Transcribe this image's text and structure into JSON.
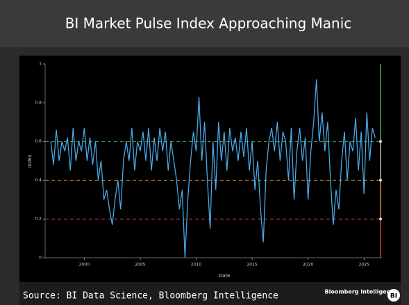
{
  "chart_data": {
    "type": "line",
    "title": "BI Market Pulse Index Approaching Manic",
    "x_label": "Date",
    "y_label": "Index",
    "source": "Source: BI Data Science, Bloomberg Intelligence",
    "logo_text": "Bloomberg Intelligence",
    "logo_badge": "BI",
    "x": [
      1997,
      1997.25,
      1997.5,
      1997.75,
      1998,
      1998.25,
      1998.5,
      1998.75,
      1999,
      1999.25,
      1999.5,
      1999.75,
      2000,
      2000.25,
      2000.5,
      2000.75,
      2001,
      2001.25,
      2001.5,
      2001.75,
      2002,
      2002.25,
      2002.5,
      2002.75,
      2003,
      2003.25,
      2003.5,
      2003.75,
      2004,
      2004.25,
      2004.5,
      2004.75,
      2005,
      2005.25,
      2005.5,
      2005.75,
      2006,
      2006.25,
      2006.5,
      2006.75,
      2007,
      2007.25,
      2007.5,
      2007.75,
      2008,
      2008.25,
      2008.5,
      2008.75,
      2009,
      2009.25,
      2009.5,
      2009.75,
      2010,
      2010.25,
      2010.5,
      2010.75,
      2011,
      2011.25,
      2011.5,
      2011.75,
      2012,
      2012.25,
      2012.5,
      2012.75,
      2013,
      2013.25,
      2013.5,
      2013.75,
      2014,
      2014.25,
      2014.5,
      2014.75,
      2015,
      2015.25,
      2015.5,
      2015.75,
      2016,
      2016.25,
      2016.5,
      2016.75,
      2017,
      2017.25,
      2017.5,
      2017.75,
      2018,
      2018.25,
      2018.5,
      2018.75,
      2019,
      2019.25,
      2019.5,
      2019.75,
      2020,
      2020.25,
      2020.5,
      2020.75,
      2021,
      2021.25,
      2021.5,
      2021.75,
      2022,
      2022.25,
      2022.5,
      2022.75,
      2023,
      2023.25,
      2023.5,
      2023.75,
      2024,
      2024.25,
      2024.5,
      2024.75,
      2025,
      2025.25,
      2025.5,
      2025.75,
      2026
    ],
    "series": [
      {
        "color": "#4aa8e8",
        "values": [
          0.6,
          0.48,
          0.66,
          0.5,
          0.6,
          0.55,
          0.62,
          0.45,
          0.67,
          0.5,
          0.6,
          0.55,
          0.67,
          0.5,
          0.62,
          0.48,
          0.6,
          0.4,
          0.5,
          0.3,
          0.35,
          0.25,
          0.17,
          0.3,
          0.4,
          0.25,
          0.5,
          0.6,
          0.5,
          0.67,
          0.45,
          0.6,
          0.55,
          0.65,
          0.5,
          0.67,
          0.45,
          0.62,
          0.5,
          0.67,
          0.55,
          0.65,
          0.45,
          0.6,
          0.5,
          0.4,
          0.25,
          0.35,
          0.0,
          0.3,
          0.5,
          0.65,
          0.55,
          0.83,
          0.5,
          0.7,
          0.4,
          0.15,
          0.6,
          0.35,
          0.7,
          0.5,
          0.65,
          0.45,
          0.67,
          0.55,
          0.62,
          0.5,
          0.65,
          0.52,
          0.67,
          0.45,
          0.6,
          0.35,
          0.5,
          0.25,
          0.08,
          0.45,
          0.6,
          0.67,
          0.55,
          0.7,
          0.5,
          0.65,
          0.6,
          0.4,
          0.67,
          0.3,
          0.55,
          0.67,
          0.5,
          0.62,
          0.3,
          0.55,
          0.7,
          0.92,
          0.6,
          0.75,
          0.55,
          0.7,
          0.4,
          0.17,
          0.35,
          0.25,
          0.5,
          0.65,
          0.4,
          0.6,
          0.55,
          0.72,
          0.45,
          0.65,
          0.33,
          0.75,
          0.5,
          0.67,
          0.62
        ]
      }
    ],
    "thresholds": [
      {
        "value": 0.6,
        "color": "#3fae49"
      },
      {
        "value": 0.4,
        "color": "#e08a1e"
      },
      {
        "value": 0.2,
        "color": "#d23a3a"
      }
    ],
    "zones": [
      {
        "from": 0.6,
        "to": 1,
        "color": "#3fae49"
      },
      {
        "from": 0.4,
        "to": 0.6,
        "color": "#bbbbbb"
      },
      {
        "from": 0.2,
        "to": 0.4,
        "color": "#e08a1e"
      },
      {
        "from": 0,
        "to": 0.2,
        "color": "#d23a3a"
      }
    ],
    "xlim": [
      1996.5,
      2026.6
    ],
    "xticks": [
      2000,
      2005,
      2010,
      2015,
      2020,
      2025
    ],
    "ylim": [
      0,
      1
    ],
    "yticks": [
      0,
      0.2,
      0.4,
      0.6,
      0.8,
      1
    ]
  }
}
